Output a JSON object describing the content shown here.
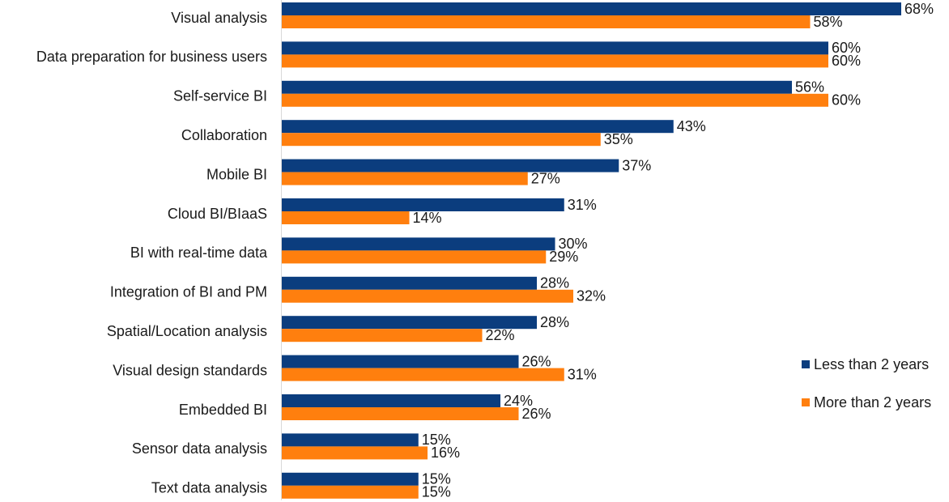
{
  "chart_data": {
    "type": "bar",
    "orientation": "horizontal",
    "categories": [
      "Visual analysis",
      "Data preparation for business users",
      "Self-service BI",
      "Collaboration",
      "Mobile BI",
      "Cloud BI/BIaaS",
      "BI with real-time data",
      "Integration of BI and PM",
      "Spatial/Location analysis",
      "Visual design standards",
      "Embedded BI",
      "Sensor data analysis",
      "Text data analysis"
    ],
    "series": [
      {
        "name": "Less than 2 years",
        "color": "#0b3d7e",
        "values": [
          68,
          60,
          56,
          43,
          37,
          31,
          30,
          28,
          28,
          26,
          24,
          15,
          15
        ],
        "labels": [
          "68%",
          "60%",
          "56%",
          "43%",
          "37%",
          "31%",
          "30%",
          "28%",
          "28%",
          "26%",
          "24%",
          "15%",
          "15%"
        ]
      },
      {
        "name": "More than 2 years",
        "color": "#ff7f0e",
        "values": [
          58,
          60,
          60,
          35,
          27,
          14,
          29,
          32,
          22,
          31,
          26,
          16,
          15
        ],
        "labels": [
          "58%",
          "60%",
          "60%",
          "35%",
          "27%",
          "14%",
          "29%",
          "32%",
          "22%",
          "31%",
          "26%",
          "16%",
          "15%"
        ]
      }
    ],
    "unit": "%",
    "xlim": [
      0,
      70
    ],
    "grid": false,
    "legend_position": "right"
  }
}
